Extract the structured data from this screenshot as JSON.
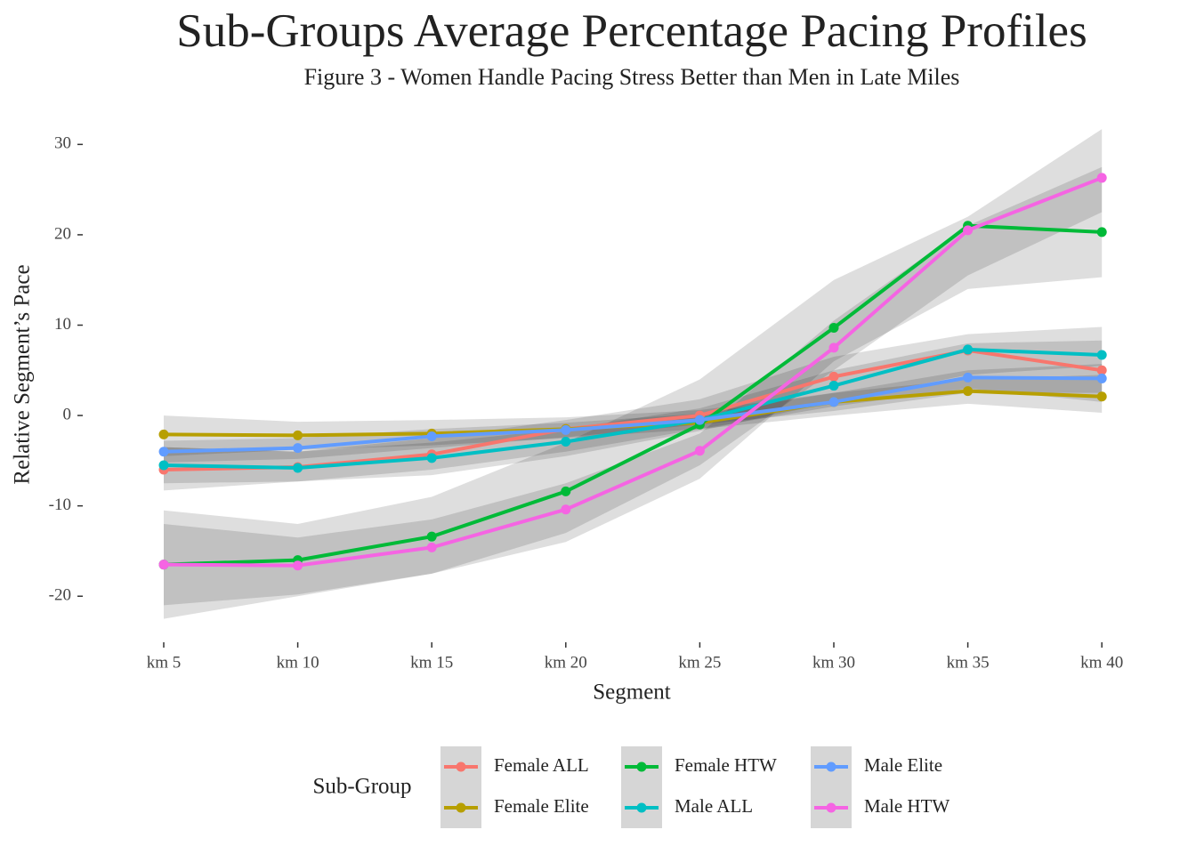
{
  "chart_data": {
    "type": "line",
    "title": "Sub-Groups Average Percentage Pacing Profiles",
    "subtitle": "Figure 3 - Women Handle Pacing Stress Better than Men in Late Miles",
    "x_label": "Segment",
    "y_label": "Relative Segment’s Pace",
    "legend_title": "Sub-Group",
    "categories": [
      "km 5",
      "km 10",
      "km 15",
      "km 20",
      "km 25",
      "km 30",
      "km 35",
      "km 40"
    ],
    "ylim": [
      -24.9,
      32.2
    ],
    "yticks": [
      -20,
      -10,
      0,
      10,
      20,
      30
    ],
    "grid": false,
    "series": [
      {
        "name": "Female ALL",
        "color": "#F8766D",
        "values": [
          -6.0,
          -5.7,
          -4.3,
          -1.5,
          0,
          4.3,
          7.2,
          5.0
        ],
        "lower": [
          -8.3,
          -7.3,
          -6,
          -4,
          -1.5,
          1,
          3,
          1.5
        ],
        "upper": [
          -3.5,
          -4,
          -2.5,
          -0.5,
          1.8,
          6.5,
          9,
          9.8
        ]
      },
      {
        "name": "Female Elite",
        "color": "#B79F00",
        "values": [
          -2.1,
          -2.2,
          -2.0,
          -1.5,
          -0.8,
          1.5,
          2.7,
          2.1
        ],
        "lower": [
          -4.5,
          -3.8,
          -3.3,
          -2.5,
          -1.5,
          0,
          1.3,
          0.3
        ],
        "upper": [
          0,
          -0.7,
          -0.5,
          -0.2,
          0.6,
          2.5,
          4,
          4.5
        ]
      },
      {
        "name": "Female HTW",
        "color": "#00BA38",
        "values": [
          -16.5,
          -16.0,
          -13.4,
          -8.4,
          -1.0,
          9.7,
          21.0,
          20.3
        ],
        "lower": [
          -22.5,
          -20,
          -17.5,
          -14,
          -7,
          6,
          14,
          15.3
        ],
        "upper": [
          -10.5,
          -12,
          -9,
          -3,
          4,
          15,
          22,
          31.7
        ]
      },
      {
        "name": "Male ALL",
        "color": "#00BFC4",
        "values": [
          -5.5,
          -5.8,
          -4.7,
          -2.9,
          -0.5,
          3.3,
          7.3,
          6.7
        ],
        "lower": [
          -7.5,
          -7.3,
          -6.6,
          -4.5,
          -1.7,
          1.5,
          4.5,
          5.5
        ],
        "upper": [
          -3.5,
          -4,
          -3,
          -1.5,
          0.8,
          5,
          8,
          8.3
        ]
      },
      {
        "name": "Male Elite",
        "color": "#619CFF",
        "values": [
          -4.0,
          -3.6,
          -2.3,
          -1.6,
          -0.5,
          1.5,
          4.2,
          4.1
        ],
        "lower": [
          -5.2,
          -4.8,
          -3.6,
          -2.4,
          -1,
          0.5,
          2.5,
          2.5
        ],
        "upper": [
          -2.8,
          -2.5,
          -1.5,
          -0.8,
          0.2,
          2.5,
          5,
          5.7
        ]
      },
      {
        "name": "Male HTW",
        "color": "#F564E3",
        "values": [
          -16.5,
          -16.6,
          -14.6,
          -10.4,
          -3.9,
          7.5,
          20.5,
          26.3
        ],
        "lower": [
          -21,
          -19.8,
          -17.5,
          -13,
          -5.5,
          5,
          15.5,
          22.5
        ],
        "upper": [
          -12,
          -13.5,
          -11.5,
          -7.5,
          -2,
          10.5,
          21,
          27.5
        ]
      }
    ]
  }
}
